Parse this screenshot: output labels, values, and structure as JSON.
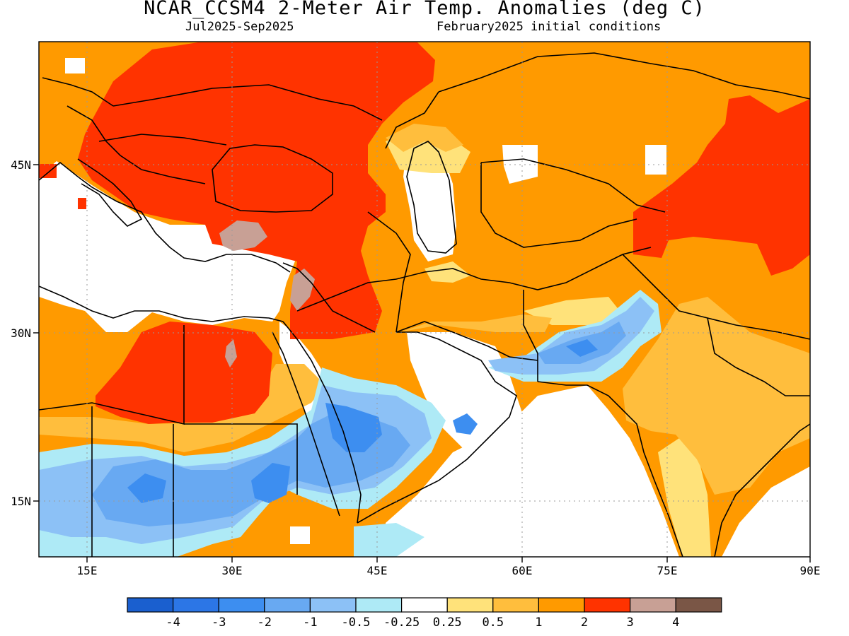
{
  "title": "NCAR_CCSM4 2-Meter Air Temp. Anomalies (deg C)",
  "subtitle_left": "Jul2025-Sep2025",
  "subtitle_right": "February2025 initial conditions",
  "lat_labels": [
    "45N",
    "30N",
    "15N"
  ],
  "lon_labels": [
    "15E",
    "30E",
    "45E",
    "60E",
    "75E",
    "90E"
  ],
  "colorbar": {
    "colors": [
      "#1a5fcf",
      "#2c76e6",
      "#3d8ef0",
      "#68a9f2",
      "#8cc1f6",
      "#aeeaf6",
      "#ffffff",
      "#ffe27a",
      "#ffbe3d",
      "#ff9a00",
      "#ff3300",
      "#c8a095",
      "#7a5646"
    ],
    "labels": [
      "-4",
      "-3",
      "-2",
      "-1",
      "-0.5",
      "-0.25",
      "0.25",
      "0.5",
      "1",
      "2",
      "3",
      "4"
    ]
  },
  "colors": {
    "sea": "#ffffff",
    "border": "#000000",
    "grid": "#9a9a9a"
  }
}
